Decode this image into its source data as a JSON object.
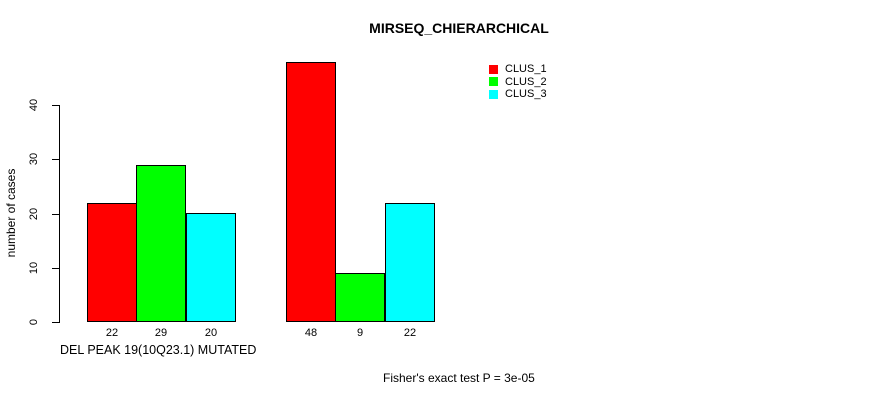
{
  "chart_data": {
    "type": "bar",
    "title": "MIRSEQ_CHIERARCHICAL",
    "xlabel": "DEL PEAK 19(10Q23.1) MUTATED",
    "ylabel": "number of cases",
    "annotation": "Fisher's exact test P = 3e-05",
    "categories": [
      "",
      ""
    ],
    "series": [
      {
        "name": "CLUS_1",
        "color": "#ff0000",
        "values": [
          22,
          48
        ]
      },
      {
        "name": "CLUS_2",
        "color": "#00ff00",
        "values": [
          29,
          9
        ]
      },
      {
        "name": "CLUS_3",
        "color": "#00ffff",
        "values": [
          20,
          22
        ]
      }
    ],
    "bar_value_labels": [
      [
        22,
        29,
        20
      ],
      [
        48,
        9,
        22
      ]
    ],
    "yticks": [
      0,
      10,
      20,
      30,
      40
    ],
    "ylim": [
      0,
      48
    ],
    "grid": false,
    "legend_position": "top-right",
    "bar_border_color": "#000000",
    "text_color": "#000000",
    "background_color": "#ffffff"
  }
}
